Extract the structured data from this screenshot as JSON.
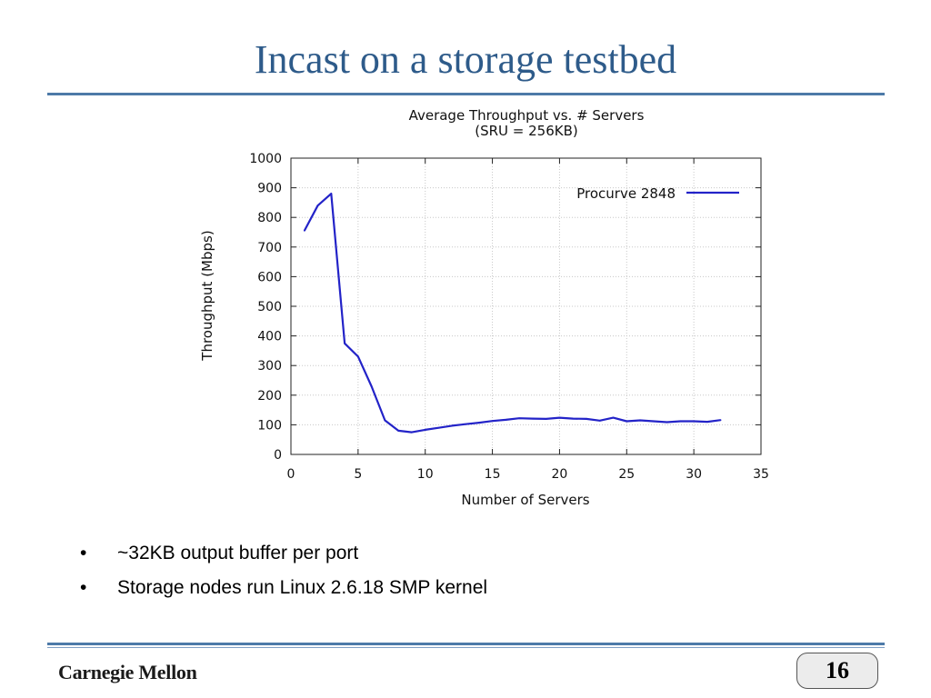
{
  "slide": {
    "title": "Incast on a storage testbed",
    "bullets": [
      "~32KB output buffer per port",
      "Storage nodes run Linux 2.6.18 SMP kernel"
    ],
    "bullet_symbol": "•",
    "footer_logo": "Carnegie Mellon",
    "page_number": "16",
    "colors": {
      "title": "#2e5b8a",
      "rule": "#4d7aa8",
      "series": "#2323c8"
    }
  },
  "chart_data": {
    "type": "line",
    "title": "Average Throughput vs. # Servers",
    "subtitle": "(SRU = 256KB)",
    "xlabel": "Number of Servers",
    "ylabel": "Throughput (Mbps)",
    "xlim": [
      0,
      35
    ],
    "ylim": [
      0,
      1000
    ],
    "xticks": [
      0,
      5,
      10,
      15,
      20,
      25,
      30,
      35
    ],
    "yticks": [
      0,
      100,
      200,
      300,
      400,
      500,
      600,
      700,
      800,
      900,
      1000
    ],
    "grid": true,
    "legend_position": "top-right",
    "series": [
      {
        "name": "Procurve 2848",
        "color": "#2323c8",
        "x": [
          1,
          2,
          3,
          4,
          5,
          6,
          7,
          8,
          9,
          10,
          11,
          12,
          13,
          14,
          15,
          16,
          17,
          18,
          19,
          20,
          21,
          22,
          23,
          24,
          25,
          26,
          27,
          28,
          29,
          30,
          31,
          32
        ],
        "y": [
          755,
          840,
          880,
          375,
          330,
          230,
          115,
          80,
          75,
          83,
          90,
          97,
          102,
          107,
          113,
          117,
          122,
          121,
          120,
          124,
          121,
          120,
          114,
          124,
          112,
          115,
          112,
          109,
          112,
          112,
          110,
          116
        ]
      }
    ]
  }
}
